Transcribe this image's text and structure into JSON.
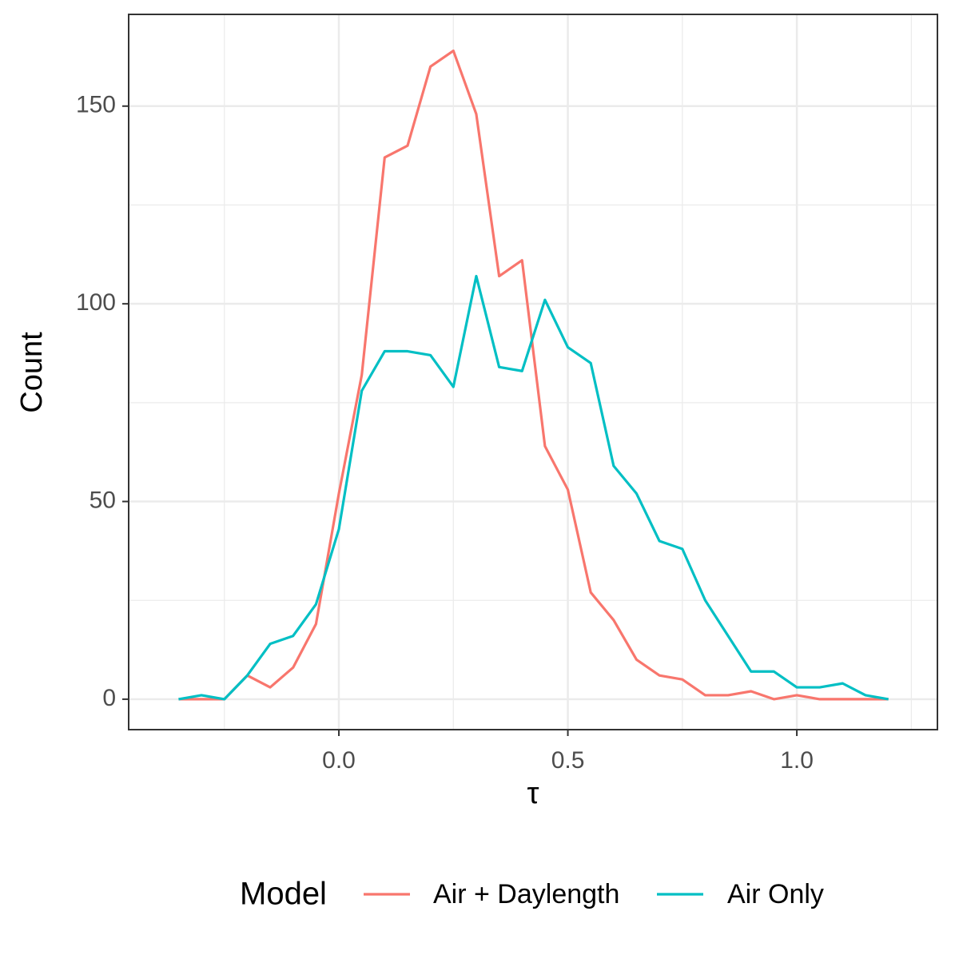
{
  "chart_data": {
    "type": "line",
    "x_label": "τ",
    "y_label": "Count",
    "legend_title": "Model",
    "legend_position": "bottom",
    "grid": true,
    "x": [
      -0.35,
      -0.3,
      -0.25,
      -0.2,
      -0.15,
      -0.1,
      -0.05,
      0,
      0.05,
      0.1,
      0.15,
      0.2,
      0.25,
      0.3,
      0.35,
      0.4,
      0.45,
      0.5,
      0.55,
      0.6,
      0.65,
      0.7,
      0.75,
      0.8,
      0.85,
      0.9,
      0.95,
      1,
      1.05,
      1.1,
      1.15,
      1.2
    ],
    "series": [
      {
        "name": "Air + Daylength",
        "color": "#F8766D",
        "values": [
          0,
          0,
          0,
          6,
          3,
          8,
          19,
          52,
          82,
          137,
          140,
          160,
          164,
          148,
          107,
          111,
          64,
          53,
          27,
          20,
          10,
          6,
          5,
          1,
          1,
          2,
          0,
          1,
          0,
          0,
          0,
          0
        ]
      },
      {
        "name": "Air Only",
        "color": "#00BFC4",
        "values": [
          0,
          1,
          0,
          6,
          14,
          16,
          24,
          43,
          78,
          88,
          88,
          87,
          79,
          107,
          84,
          83,
          101,
          89,
          85,
          59,
          52,
          40,
          38,
          25,
          16,
          7,
          7,
          3,
          3,
          4,
          1,
          0
        ]
      }
    ],
    "xlim": [
      -0.459,
      1.307
    ],
    "ylim": [
      -7.7,
      173.2
    ],
    "xticks": [
      {
        "value": 0,
        "label": "0.0"
      },
      {
        "value": 0.5,
        "label": "0.5"
      },
      {
        "value": 1,
        "label": "1.0"
      }
    ],
    "yticks": [
      0,
      50,
      100,
      150
    ],
    "x_minor_ticks": [
      -0.25,
      0.25,
      0.75,
      1.25
    ],
    "y_minor_ticks": [
      25,
      75,
      125
    ]
  }
}
